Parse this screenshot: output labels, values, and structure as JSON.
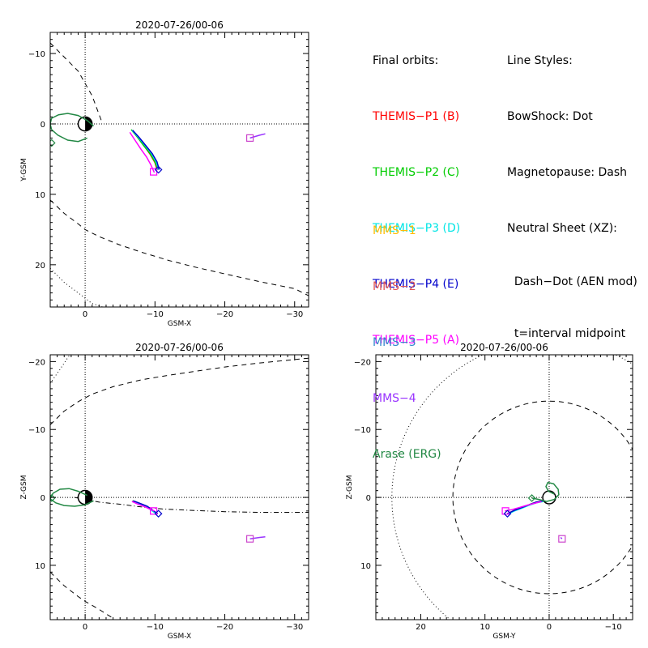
{
  "chart_data": [
    {
      "type": "line",
      "panel": "xy",
      "title": "2020-07-26/00-06",
      "xlabel": "GSM-X",
      "ylabel": "Y-GSM",
      "xlim": [
        5,
        -32
      ],
      "ylim": [
        -13,
        26
      ],
      "xticks": [
        0,
        -10,
        -20,
        -30
      ],
      "yticks": [
        -10,
        0,
        10,
        20
      ],
      "tick_labels_x": [
        "0",
        "−10",
        "−20",
        "−30"
      ],
      "tick_labels_y": [
        "−10",
        "0",
        "10",
        "20"
      ],
      "series": [
        {
          "name": "THEMIS-P1 (B)",
          "color": "#ff0000",
          "x": [
            -6.7,
            -7.6,
            -8.5,
            -9.3,
            -10.0,
            -10.3
          ],
          "y": [
            0.9,
            2.0,
            3.2,
            4.3,
            5.5,
            6.5
          ]
        },
        {
          "name": "THEMIS-P2 (C)",
          "color": "#00cc00",
          "x": [
            -6.6,
            -7.5,
            -8.4,
            -9.3,
            -10.0,
            -10.4
          ],
          "y": [
            0.8,
            1.9,
            3.1,
            4.2,
            5.4,
            6.5
          ]
        },
        {
          "name": "THEMIS-P3 (D)",
          "color": "#00e5e5",
          "x": [
            -6.7,
            -7.7,
            -8.6,
            -9.5,
            -10.2,
            -10.5
          ],
          "y": [
            0.9,
            2.0,
            3.1,
            4.2,
            5.4,
            6.5
          ]
        },
        {
          "name": "THEMIS-P4 (E)",
          "color": "#0000cc",
          "x": [
            -6.8,
            -7.8,
            -8.7,
            -9.6,
            -10.3,
            -10.6
          ],
          "y": [
            0.9,
            2.0,
            3.1,
            4.2,
            5.4,
            6.5
          ]
        },
        {
          "name": "THEMIS-P5 (A)",
          "color": "#ff00ff",
          "x": [
            -6.4,
            -7.2,
            -8.0,
            -8.8,
            -9.4,
            -9.9
          ],
          "y": [
            1.2,
            2.4,
            3.6,
            4.7,
            5.8,
            6.9
          ]
        },
        {
          "name": "MMS-4",
          "color": "#9933ff",
          "x": [
            -23.6,
            -24.3,
            -25.0,
            -25.8
          ],
          "y": [
            2.0,
            1.8,
            1.6,
            1.4
          ]
        },
        {
          "name": "Arase (ERG)",
          "color": "#228844",
          "x": [
            -1.2,
            -0.3,
            1.0,
            2.5,
            3.8,
            4.8,
            5.0,
            4.8,
            3.9,
            2.5,
            1.0,
            -0.3
          ],
          "y": [
            0.3,
            -0.5,
            -1.2,
            -1.5,
            -1.3,
            -0.8,
            0.0,
            0.8,
            1.6,
            2.3,
            2.5,
            2.0
          ]
        }
      ],
      "endpoints": [
        {
          "marker": "square",
          "color": "#ff00ff",
          "x": -9.8,
          "y": 6.8
        },
        {
          "marker": "diamond",
          "color": "#0000cc",
          "x": -10.5,
          "y": 6.5
        },
        {
          "marker": "square",
          "color": "#cc44cc",
          "x": -23.6,
          "y": 2.0
        },
        {
          "marker": "diamond",
          "color": "#228844",
          "x": 4.8,
          "y": 2.7
        }
      ],
      "bowshock": {
        "x": [
          5,
          3,
          1,
          -1,
          -2.5
        ],
        "y": [
          -11.5,
          -9.5,
          -7.5,
          -4,
          0
        ]
      },
      "magnetopause": {
        "x": [
          5,
          3,
          1,
          0,
          -2,
          -5,
          -8,
          -12,
          -16,
          -20,
          -25,
          -30,
          -32
        ],
        "y": [
          10.8,
          12.7,
          14.2,
          15.0,
          16.0,
          17.2,
          18.2,
          19.4,
          20.4,
          21.3,
          22.4,
          23.4,
          24.4
        ]
      },
      "bowshock_lower": {
        "x": [
          5,
          3,
          1,
          -1,
          -2.5
        ],
        "y": [
          20.5,
          22.5,
          24.0,
          25.5,
          26.0
        ]
      }
    },
    {
      "type": "line",
      "panel": "xz",
      "title": "2020-07-26/00-06",
      "xlabel": "GSM-X",
      "ylabel": "Z-GSM",
      "xlim": [
        5,
        -32
      ],
      "ylim": [
        -21,
        18
      ],
      "xticks": [
        0,
        -10,
        -20,
        -30
      ],
      "yticks": [
        10,
        0,
        -10,
        -20
      ],
      "tick_labels_x": [
        "0",
        "−10",
        "−20",
        "−30"
      ],
      "tick_labels_y": [
        "10",
        "0",
        "−10",
        "−20"
      ],
      "series": [
        {
          "name": "THEMIS-P1 (B)",
          "color": "#ff0000",
          "x": [
            -6.8,
            -7.8,
            -8.8,
            -9.6,
            -10.3
          ],
          "y": [
            0.5,
            0.9,
            1.3,
            1.9,
            2.4
          ]
        },
        {
          "name": "THEMIS-P2 (C)",
          "color": "#00cc00",
          "x": [
            -6.8,
            -7.8,
            -8.8,
            -9.6,
            -10.3
          ],
          "y": [
            0.5,
            0.9,
            1.3,
            1.9,
            2.4
          ]
        },
        {
          "name": "THEMIS-P3 (D)",
          "color": "#00e5e5",
          "x": [
            -6.8,
            -7.8,
            -8.8,
            -9.6,
            -10.3
          ],
          "y": [
            0.6,
            1.0,
            1.4,
            2.0,
            2.5
          ]
        },
        {
          "name": "THEMIS-P4 (E)",
          "color": "#0000cc",
          "x": [
            -6.9,
            -7.9,
            -8.9,
            -9.7,
            -10.4
          ],
          "y": [
            0.5,
            0.9,
            1.3,
            1.9,
            2.4
          ]
        },
        {
          "name": "THEMIS-P5 (A)",
          "color": "#ff00ff",
          "x": [
            -6.7,
            -7.6,
            -8.6,
            -9.4,
            -9.9
          ],
          "y": [
            0.6,
            1.0,
            1.4,
            1.8,
            2.0
          ]
        },
        {
          "name": "MMS-4",
          "color": "#9933ff",
          "x": [
            -23.6,
            -24.3,
            -25.0,
            -25.8
          ],
          "y": [
            6.1,
            6.0,
            5.9,
            5.8
          ]
        },
        {
          "name": "Arase (ERG)",
          "color": "#228844",
          "x": [
            -1.2,
            0.0,
            1.5,
            3.0,
            4.2,
            5.0,
            4.6,
            3.6,
            2.3,
            1.0,
            -0.3
          ],
          "y": [
            0.5,
            1.1,
            1.3,
            1.2,
            0.8,
            0.2,
            -0.6,
            -1.2,
            -1.3,
            -0.9,
            -0.3
          ]
        }
      ],
      "endpoints": [
        {
          "marker": "square",
          "color": "#ff00ff",
          "x": -9.8,
          "y": 2.0
        },
        {
          "marker": "diamond",
          "color": "#0000cc",
          "x": -10.5,
          "y": 2.4
        },
        {
          "marker": "square",
          "color": "#cc44cc",
          "x": -23.6,
          "y": 6.1
        },
        {
          "marker": "diamond",
          "color": "#228844",
          "x": 4.8,
          "y": 0.1
        }
      ],
      "neutral_sheet": {
        "x": [
          1.5,
          -2,
          -5,
          -8,
          -11,
          -15,
          -20,
          -25,
          -30,
          -32
        ],
        "y": [
          0.0,
          0.7,
          1.0,
          1.4,
          1.7,
          1.9,
          2.1,
          2.2,
          2.2,
          2.2
        ]
      },
      "magnetopause_upper": {
        "x": [
          5,
          3,
          1,
          0,
          -2,
          -4
        ],
        "y": [
          11.0,
          13.0,
          14.6,
          15.3,
          16.5,
          17.8
        ]
      },
      "magnetopause_lower": {
        "x": [
          5,
          3,
          1,
          -1,
          -4,
          -8,
          -12,
          -16,
          -20,
          -25,
          -30,
          -32
        ],
        "y": [
          -10.7,
          -12.7,
          -14.1,
          -15.2,
          -16.3,
          -17.3,
          -18.0,
          -18.6,
          -19.2,
          -19.8,
          -20.3,
          -20.5
        ]
      },
      "bowshock_lower": {
        "x": [
          5,
          3.5,
          2.2
        ],
        "y": [
          -16.8,
          -19.0,
          -21.0
        ]
      }
    },
    {
      "type": "line",
      "panel": "yz",
      "title": "2020-07-26/00-06",
      "xlabel": "GSM-Y",
      "ylabel": "Z-GSM",
      "xlim": [
        27,
        -13
      ],
      "ylim": [
        -21,
        18
      ],
      "xticks": [
        20,
        10,
        0,
        -10
      ],
      "yticks": [
        10,
        0,
        -10,
        -20
      ],
      "tick_labels_x": [
        "20",
        "10",
        "0",
        "−10"
      ],
      "tick_labels_y": [
        "10",
        "0",
        "−10",
        "−20"
      ],
      "series": [
        {
          "name": "THEMIS-P1 (B)",
          "color": "#ff0000",
          "x": [
            6.5,
            5.4,
            4.3,
            3.2,
            2.0,
            0.9
          ],
          "y": [
            2.4,
            1.9,
            1.5,
            1.1,
            0.7,
            0.5
          ]
        },
        {
          "name": "THEMIS-P2 (C)",
          "color": "#00cc00",
          "x": [
            6.5,
            5.4,
            4.3,
            3.2,
            2.0,
            0.9
          ],
          "y": [
            2.4,
            1.9,
            1.5,
            1.1,
            0.7,
            0.5
          ]
        },
        {
          "name": "THEMIS-P3 (D)",
          "color": "#00e5e5",
          "x": [
            6.5,
            5.4,
            4.3,
            3.2,
            2.0,
            0.9
          ],
          "y": [
            2.5,
            2.0,
            1.6,
            1.2,
            0.8,
            0.6
          ]
        },
        {
          "name": "THEMIS-P4 (E)",
          "color": "#0000cc",
          "x": [
            6.5,
            5.4,
            4.3,
            3.2,
            2.0,
            0.9
          ],
          "y": [
            2.4,
            1.9,
            1.5,
            1.1,
            0.7,
            0.5
          ]
        },
        {
          "name": "THEMIS-P5 (A)",
          "color": "#ff00ff",
          "x": [
            6.9,
            5.8,
            4.7,
            3.6,
            2.4,
            1.2
          ],
          "y": [
            2.0,
            1.8,
            1.5,
            1.2,
            0.9,
            0.6
          ]
        },
        {
          "name": "MMS-4",
          "color": "#9933ff",
          "x": [
            -2.0,
            -1.8
          ],
          "y": [
            6.1,
            5.9
          ]
        },
        {
          "name": "Arase (ERG)",
          "color": "#228844",
          "x": [
            2.7,
            1.6,
            0.4,
            -0.8,
            -1.5,
            -1.4,
            -0.7,
            0.2,
            0.5,
            0.1,
            -0.8
          ],
          "y": [
            0.1,
            0.3,
            0.6,
            0.3,
            -0.4,
            -1.2,
            -2.0,
            -2.2,
            -1.6,
            -0.9,
            -0.5
          ]
        }
      ],
      "endpoints": [
        {
          "marker": "square",
          "color": "#ff00ff",
          "x": 6.8,
          "y": 2.0
        },
        {
          "marker": "diamond",
          "color": "#0000cc",
          "x": 6.5,
          "y": 2.4
        },
        {
          "marker": "square",
          "color": "#cc44cc",
          "x": -2.0,
          "y": 6.1
        },
        {
          "marker": "diamond",
          "color": "#228844",
          "x": 2.7,
          "y": 0.1
        }
      ],
      "magnetopause_radius": 15.0,
      "bowshock_radius": 24.5,
      "earth_radius": 1.0
    }
  ],
  "legend_orbits": {
    "heading": "Final orbits:",
    "items": [
      {
        "label": "THEMIS−P1 (B)",
        "color": "#ff0000"
      },
      {
        "label": "THEMIS−P2 (C)",
        "color": "#00cc00"
      },
      {
        "label": "THEMIS−P3 (D)",
        "color": "#00e5e5"
      },
      {
        "label": "THEMIS−P4 (E)",
        "color": "#0000cc"
      },
      {
        "label": "THEMIS−P5 (A)",
        "color": "#ff00ff"
      }
    ]
  },
  "legend_styles": {
    "heading": "Line Styles:",
    "lines": [
      "BowShock: Dot",
      "Magnetopause: Dash",
      "Neutral Sheet (XZ):",
      "  Dash−Dot (AEN mod)",
      "  t=interval midpoint"
    ]
  },
  "legend_missions": {
    "items": [
      {
        "label": "MMS−1",
        "color": "#ffbb00"
      },
      {
        "label": "MMS−2",
        "color": "#e05555"
      },
      {
        "label": "MMS−3",
        "color": "#3388cc"
      },
      {
        "label": "MMS−4",
        "color": "#9933ff"
      },
      {
        "label": "Arase (ERG)",
        "color": "#228844"
      }
    ]
  }
}
